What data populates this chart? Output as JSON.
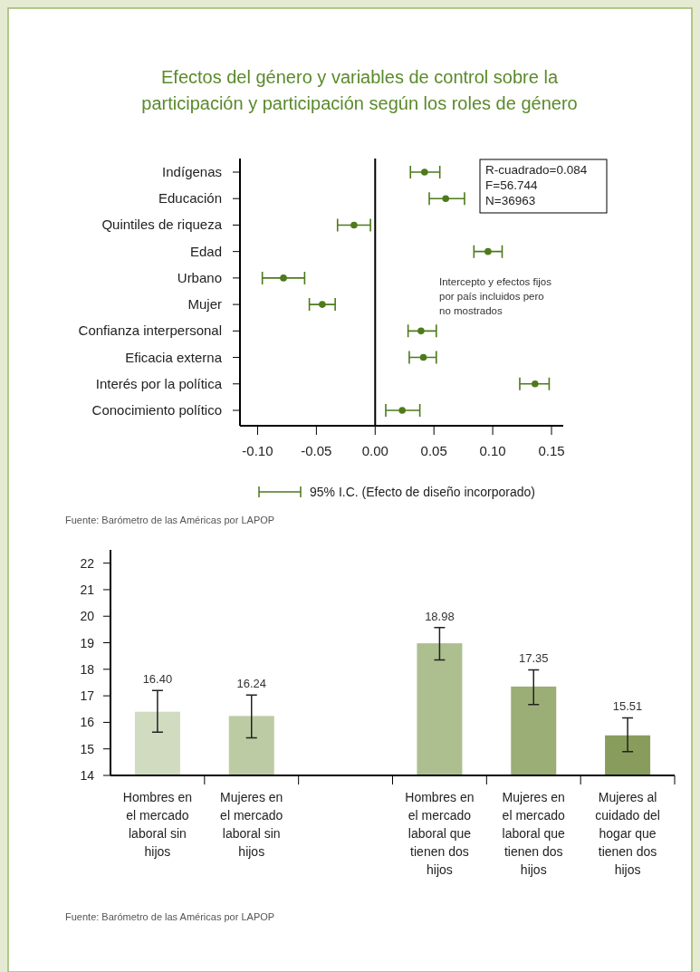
{
  "chart_data": [
    {
      "type": "scatter",
      "title": "Efectos del género y variables de control sobre la participación y participación según los roles de género",
      "orientation": "horizontal",
      "categories": [
        "Indígenas",
        "Educación",
        "Quintiles de riqueza",
        "Edad",
        "Urbano",
        "Mujer",
        "Confianza interpersonal",
        "Eficacia externa",
        "Interés por la política",
        "Conocimiento político"
      ],
      "series": [
        {
          "name": "95% I.C. (Efecto de diseño incorporado)",
          "color": "#4e7a1c",
          "values": [
            0.042,
            0.06,
            -0.018,
            0.096,
            -0.078,
            -0.045,
            0.039,
            0.041,
            0.136,
            0.023
          ],
          "errors": [
            [
              0.03,
              0.055
            ],
            [
              0.046,
              0.076
            ],
            [
              -0.032,
              -0.004
            ],
            [
              0.084,
              0.108
            ],
            [
              -0.096,
              -0.06
            ],
            [
              -0.056,
              -0.034
            ],
            [
              0.028,
              0.052
            ],
            [
              0.029,
              0.052
            ],
            [
              0.123,
              0.148
            ],
            [
              0.009,
              0.038
            ]
          ]
        }
      ],
      "xlim": [
        -0.115,
        0.16
      ],
      "xticks": [
        {
          "value": -0.1,
          "label": "-0.10"
        },
        {
          "value": -0.05,
          "label": "-0.05"
        },
        {
          "value": 0,
          "label": "0.00"
        },
        {
          "value": 0.05,
          "label": "0.05"
        },
        {
          "value": 0.1,
          "label": "0.10"
        },
        {
          "value": 0.15,
          "label": "0.15"
        }
      ],
      "ref_lines": [
        {
          "axis": "x",
          "value": 0,
          "color": "#000000"
        }
      ],
      "marker": "circle",
      "legend": "bottom",
      "grid": false,
      "annotations": [
        "R-cuadrado=0.084\nF=56.744\nN=36963",
        "Intercepto y efectos fijos\npor país incluidos pero\nno mostrados",
        "Fuente: Barómetro de las Américas por LAPOP"
      ]
    },
    {
      "type": "bar",
      "categories": [
        "Hombres en el mercado laboral sin hijos",
        "Mujeres en el mercado laboral sin hijos",
        null,
        "Hombres en el mercado laboral que tienen dos hijos",
        "Mujeres en el mercado laboral que tienen dos hijos",
        "Mujeres al cuidado del hogar que tienen dos hijos"
      ],
      "values": [
        16.4,
        16.24,
        null,
        18.98,
        17.35,
        15.51
      ],
      "colors": [
        "#d1dbc0",
        "#bccba3",
        null,
        "#adbf8f",
        "#9aae76",
        "#889d5c"
      ],
      "errors": [
        [
          15.63,
          17.2
        ],
        [
          15.42,
          17.03
        ],
        null,
        [
          18.35,
          19.57
        ],
        [
          16.67,
          17.98
        ],
        [
          14.9,
          16.17
        ]
      ],
      "value_labels": [
        "16.40",
        "16.24",
        null,
        "18.98",
        "17.35",
        "15.51"
      ],
      "ylim": [
        14,
        22.5
      ],
      "yticks": [
        14,
        15,
        16,
        17,
        18,
        19,
        20,
        21,
        22
      ],
      "grid": false,
      "annotations": [
        "Fuente: Barómetro de las Américas por LAPOP"
      ]
    }
  ]
}
